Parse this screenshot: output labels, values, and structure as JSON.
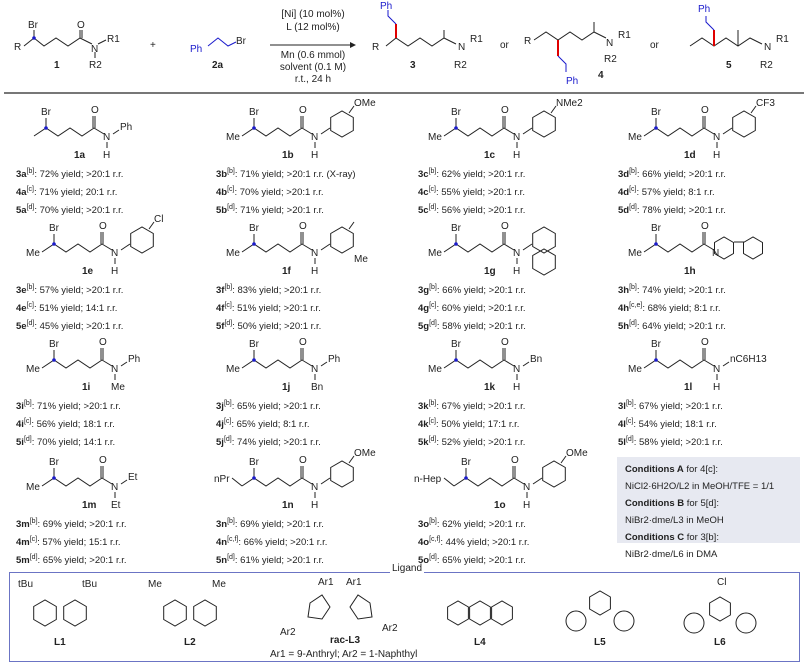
{
  "colors": {
    "chain": "#222222",
    "highlight": "#1a1acc",
    "newbond": "#e00000",
    "reagent": "#1a1acc",
    "box_bg": "#e7e9f1",
    "box_border": "#6b74c4"
  },
  "scheme": {
    "substrate": {
      "label": "1",
      "r": "R",
      "br": "Br",
      "o": "O",
      "n": "N",
      "r1": "R1",
      "r2": "R2"
    },
    "plus": "+",
    "reagent": {
      "label": "2a",
      "ph": "Ph",
      "br": "Br"
    },
    "conditions": [
      "[Ni] (10 mol%)",
      "L (12 mol%)",
      "Mn (0.6 mmol)",
      "solvent (0.1 M)",
      "r.t., 24 h"
    ],
    "products": [
      {
        "label": "3",
        "ph": "Ph",
        "r": "R"
      },
      {
        "label": "4",
        "ph": "Ph",
        "r": "R"
      },
      {
        "label": "5",
        "ph": "Ph",
        "r": "R"
      }
    ],
    "or": "or"
  },
  "compounds": [
    {
      "id": "1a",
      "left": "",
      "type": "text",
      "r1": "Ph",
      "r2": "H",
      "results": [
        [
          "3a",
          "[b]",
          ": 72% yield; >20:1 r.r."
        ],
        [
          "4a",
          "[c]",
          ": 71% yield; 20:1 r.r."
        ],
        [
          "5a",
          "[d]",
          ": 70% yield; >20:1 r.r."
        ]
      ]
    },
    {
      "id": "1b",
      "left": "Me",
      "type": "aryl",
      "sub": "OMe",
      "results": [
        [
          "3b",
          "[b]",
          ": 71% yield; >20:1 r.r. (X-ray)"
        ],
        [
          "4b",
          "[c]",
          ": 70% yield; >20:1 r.r."
        ],
        [
          "5b",
          "[d]",
          ": 71% yield; >20:1 r.r."
        ]
      ]
    },
    {
      "id": "1c",
      "left": "Me",
      "type": "aryl",
      "sub": "NMe2",
      "results": [
        [
          "3c",
          "[b]",
          ": 62% yield; >20:1 r.r."
        ],
        [
          "4c",
          "[c]",
          ": 55% yield; >20:1 r.r."
        ],
        [
          "5c",
          "[d]",
          ": 56% yield; >20:1 r.r."
        ]
      ]
    },
    {
      "id": "1d",
      "left": "Me",
      "type": "aryl",
      "sub": "CF3",
      "results": [
        [
          "3d",
          "[b]",
          ": 66% yield; >20:1 r.r."
        ],
        [
          "4d",
          "[c]",
          ": 57% yield; 8:1 r.r."
        ],
        [
          "5d",
          "[d]",
          ": 78% yield; >20:1 r.r."
        ]
      ]
    },
    {
      "id": "1e",
      "left": "Me",
      "type": "aryl",
      "sub": "Cl",
      "results": [
        [
          "3e",
          "[b]",
          ": 57% yield; >20:1 r.r."
        ],
        [
          "4e",
          "[c]",
          ": 51% yield; 14:1 r.r."
        ],
        [
          "5e",
          "[d]",
          ": 45% yield; >20:1 r.r."
        ]
      ]
    },
    {
      "id": "1f",
      "left": "Me",
      "type": "aryl",
      "sub": "Me",
      "results": [
        [
          "3f",
          "[b]",
          ": 83% yield; >20:1 r.r."
        ],
        [
          "4f",
          "[c]",
          ": 51% yield; >20:1 r.r."
        ],
        [
          "5f",
          "[d]",
          ": 50% yield; >20:1 r.r."
        ]
      ]
    },
    {
      "id": "1g",
      "left": "Me",
      "type": "aryl",
      "sub": "",
      "results": [
        [
          "3g",
          "[b]",
          ": 66% yield; >20:1 r.r."
        ],
        [
          "4g",
          "[c]",
          ": 60% yield; >20:1 r.r."
        ],
        [
          "5g",
          "[d]",
          ": 58% yield; >20:1 r.r."
        ]
      ]
    },
    {
      "id": "1h",
      "left": "Me",
      "type": "ring",
      "sub": "",
      "results": [
        [
          "3h",
          "[b]",
          ": 74% yield; >20:1 r.r."
        ],
        [
          "4h",
          "[c,e]",
          ": 68% yield; 8:1 r.r."
        ],
        [
          "5h",
          "[d]",
          ": 64% yield; >20:1 r.r."
        ]
      ]
    },
    {
      "id": "1i",
      "left": "Me",
      "type": "text",
      "r1": "Ph",
      "r2": "Me",
      "results": [
        [
          "3i",
          "[b]",
          ": 71% yield; >20:1 r.r."
        ],
        [
          "4i",
          "[c]",
          ": 56% yield; 18:1 r.r."
        ],
        [
          "5i",
          "[d]",
          ": 70% yield; 14:1 r.r."
        ]
      ]
    },
    {
      "id": "1j",
      "left": "Me",
      "type": "text",
      "r1": "Ph",
      "r2": "Bn",
      "results": [
        [
          "3j",
          "[b]",
          ": 65% yield; >20:1 r.r."
        ],
        [
          "4j",
          "[c]",
          ": 65% yield; 8:1 r.r."
        ],
        [
          "5j",
          "[d]",
          ": 74% yield; >20:1 r.r."
        ]
      ]
    },
    {
      "id": "1k",
      "left": "Me",
      "type": "text",
      "r1": "Bn",
      "r2": "H",
      "results": [
        [
          "3k",
          "[b]",
          ": 67% yield; >20:1 r.r."
        ],
        [
          "4k",
          "[c]",
          ": 50% yield; 17:1 r.r."
        ],
        [
          "5k",
          "[d]",
          ": 52% yield; >20:1 r.r."
        ]
      ]
    },
    {
      "id": "1l",
      "left": "Me",
      "type": "text",
      "r1": "nC6H13",
      "r2": "H",
      "results": [
        [
          "3l",
          "[b]",
          ": 67% yield; >20:1 r.r."
        ],
        [
          "4l",
          "[c]",
          ": 54% yield; 18:1 r.r."
        ],
        [
          "5l",
          "[d]",
          ": 58% yield; >20:1 r.r."
        ]
      ]
    },
    {
      "id": "1m",
      "left": "Me",
      "type": "text",
      "r1": "Et",
      "r2": "Et",
      "results": [
        [
          "3m",
          "[b]",
          ": 69% yield; >20:1 r.r."
        ],
        [
          "4m",
          "[c]",
          ": 57% yield; 15:1 r.r."
        ],
        [
          "5m",
          "[d]",
          ": 65% yield; >20:1 r.r."
        ]
      ]
    },
    {
      "id": "1n",
      "left": "nPr",
      "type": "aryl",
      "sub": "OMe",
      "results": [
        [
          "3n",
          "[b]",
          ": 69% yield; >20:1 r.r."
        ],
        [
          "4n",
          "[c,f]",
          ": 66% yield; >20:1 r.r."
        ],
        [
          "5n",
          "[d]",
          ": 61% yield; >20:1 r.r."
        ]
      ]
    },
    {
      "id": "1o",
      "left": "n-Hep",
      "type": "aryl",
      "sub": "OMe",
      "results": [
        [
          "3o",
          "[b]",
          ": 62% yield; >20:1 r.r."
        ],
        [
          "4o",
          "[c,f]",
          ": 44% yield; >20:1 r.r."
        ],
        [
          "5o",
          "[d]",
          ": 65% yield; >20:1 r.r."
        ]
      ]
    }
  ],
  "conditions_box": [
    {
      "title": "Conditions A",
      "for": " for 4[c]:",
      "detail": "NiCl2·6H2O/L2 in MeOH/TFE = 1/1"
    },
    {
      "title": "Conditions B",
      "for": " for 5[d]:",
      "detail": "NiBr2·dme/L3 in MeOH"
    },
    {
      "title": "Conditions C",
      "for": " for 3[b]:",
      "detail": "NiBr2·dme/L6 in DMA"
    }
  ],
  "ligands": {
    "title": "Ligand",
    "items": [
      {
        "label": "L1",
        "subs": [
          "tBu",
          "tBu"
        ]
      },
      {
        "label": "L2",
        "subs": [
          "Me",
          "Me"
        ]
      },
      {
        "label": "rac-L3",
        "subs": [
          "Ar1",
          "Ar1",
          "Ar2",
          "Ar2"
        ],
        "note": "Ar1 = 9-Anthryl; Ar2 = 1-Naphthyl"
      },
      {
        "label": "L4",
        "subs": []
      },
      {
        "label": "L5",
        "subs": []
      },
      {
        "label": "L6",
        "subs": [
          "Cl"
        ]
      }
    ]
  }
}
